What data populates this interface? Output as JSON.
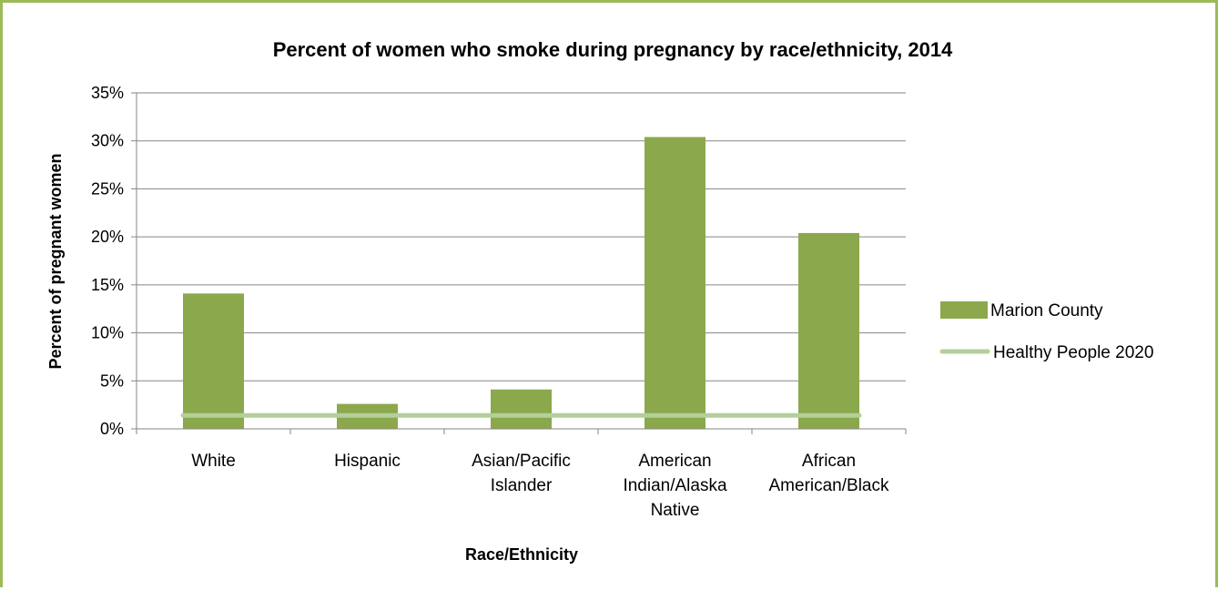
{
  "chart_data": {
    "type": "bar",
    "title": "Percent of women who smoke during pregnancy by race/ethnicity, 2014",
    "xlabel": "Race/Ethnicity",
    "ylabel": "Percent of pregnant women",
    "ylim": [
      0,
      35
    ],
    "yticks": [
      0,
      5,
      10,
      15,
      20,
      25,
      30,
      35
    ],
    "ytick_labels": [
      "0%",
      "5%",
      "10%",
      "15%",
      "20%",
      "25%",
      "30%",
      "35%"
    ],
    "categories": [
      [
        "White"
      ],
      [
        "Hispanic"
      ],
      [
        "Asian/Pacific",
        "Islander"
      ],
      [
        "American",
        "Indian/Alaska",
        "Native"
      ],
      [
        "African",
        "American/Black"
      ]
    ],
    "series": [
      {
        "name": "Marion County",
        "type": "bar",
        "color": "#8ba84c",
        "values": [
          14.1,
          2.6,
          4.1,
          30.4,
          20.4
        ]
      },
      {
        "name": "Healthy People 2020",
        "type": "line",
        "color": "#b3d09a",
        "values": [
          1.4,
          1.4,
          1.4,
          1.4,
          1.4
        ]
      }
    ],
    "grid": true,
    "legend_position": "right"
  }
}
